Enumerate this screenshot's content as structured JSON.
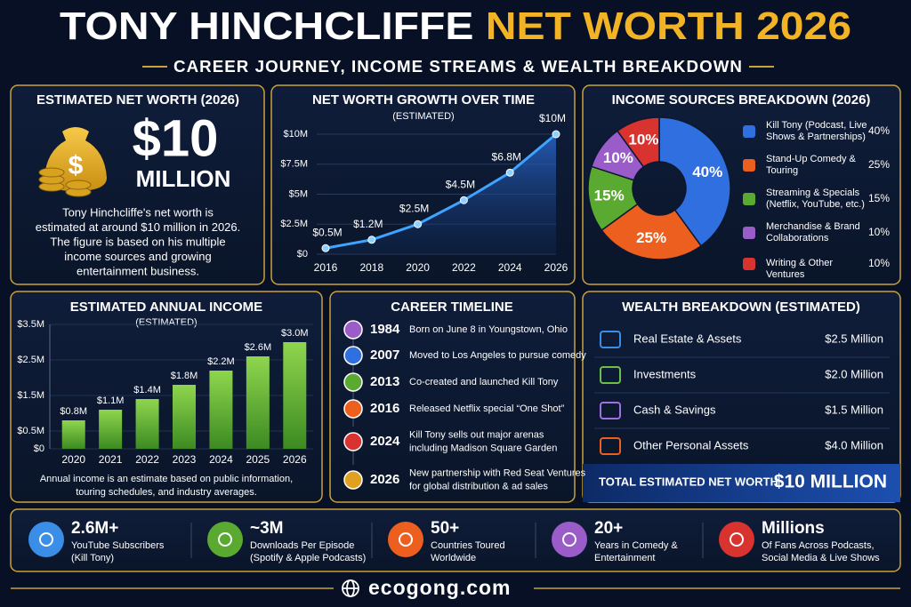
{
  "header": {
    "title_name": "TONY HINCHCLIFFE",
    "title_highlight": "NET WORTH 2026",
    "subtitle": "CAREER JOURNEY, INCOME STREAMS & WEALTH BREAKDOWN"
  },
  "net_worth": {
    "title": "ESTIMATED NET WORTH (2026)",
    "amount": "$10",
    "unit": "MILLION",
    "description": [
      "Tony Hinchcliffe's net worth is",
      "estimated at around $10 million in 2026.",
      "The figure is based on his multiple",
      "income sources and growing",
      "entertainment business."
    ]
  },
  "chart_data": [
    {
      "type": "line",
      "title": "NET WORTH GROWTH OVER TIME",
      "subtitle": "(ESTIMATED)",
      "x": [
        2016,
        2018,
        2020,
        2022,
        2024,
        2026
      ],
      "values": [
        0.5,
        1.2,
        2.5,
        4.5,
        6.8,
        10
      ],
      "value_labels": [
        "$0.5M",
        "$1.2M",
        "$2.5M",
        "$4.5M",
        "$6.8M",
        "$10M"
      ],
      "color": "#3fa4ff",
      "xlim": [
        2016,
        2026
      ],
      "xticks": [
        2016,
        2018,
        2020,
        2022,
        2024,
        2026
      ],
      "ylim": [
        0,
        10
      ],
      "yticks": [
        {
          "value": 0,
          "label": "$0"
        },
        {
          "value": 2.5,
          "label": "$2.5M"
        },
        {
          "value": 5,
          "label": "$5M"
        },
        {
          "value": 7.5,
          "label": "$7.5M"
        },
        {
          "value": 10,
          "label": "$10M"
        }
      ],
      "grid": true
    },
    {
      "type": "pie",
      "title": "INCOME SOURCES BREAKDOWN (2026)",
      "categories": [
        "Kill Tony (Podcast, Live Shows & Partnerships)",
        "Stand-Up Comedy & Touring",
        "Streaming & Specials (Netflix, YouTube, etc.)",
        "Merchandise & Brand Collaborations",
        "Writing & Other Ventures"
      ],
      "values": [
        40,
        25,
        15,
        10,
        10
      ],
      "value_labels": [
        "40%",
        "25%",
        "15%",
        "10%",
        "10%"
      ],
      "colors": [
        "#2f6fe0",
        "#ec5f1e",
        "#5aaa32",
        "#9a5cc8",
        "#d8332e"
      ]
    },
    {
      "type": "bar",
      "title": "ESTIMATED ANNUAL INCOME",
      "subtitle": "(ESTIMATED)",
      "categories": [
        "2020",
        "2021",
        "2022",
        "2023",
        "2024",
        "2025",
        "2026"
      ],
      "values": [
        0.8,
        1.1,
        1.4,
        1.8,
        2.2,
        2.6,
        3.0
      ],
      "value_labels": [
        "$0.8M",
        "$1.1M",
        "$1.4M",
        "$1.8M",
        "$2.2M",
        "$2.6M",
        "$3.0M"
      ],
      "color": "#6cc03a",
      "ylim": [
        0,
        3.5
      ],
      "yticks": [
        {
          "value": 0,
          "label": "$0"
        },
        {
          "value": 0.5,
          "label": "$0.5M"
        },
        {
          "value": 1.5,
          "label": "$1.5M"
        },
        {
          "value": 2.5,
          "label": "$2.5M"
        },
        {
          "value": 3.5,
          "label": "$3.5M"
        }
      ],
      "grid": true,
      "note": [
        "Annual income is an estimate based on public information,",
        "touring schedules, and industry averages."
      ]
    }
  ],
  "timeline": {
    "title": "CAREER TIMELINE",
    "events": [
      {
        "year": "1984",
        "text": [
          "Born on June 8 in Youngstown, Ohio"
        ]
      },
      {
        "year": "2007",
        "text": [
          "Moved to Los Angeles to pursue comedy"
        ]
      },
      {
        "year": "2013",
        "text": [
          "Co-created and launched Kill Tony"
        ]
      },
      {
        "year": "2016",
        "text": [
          "Released Netflix special “One Shot”"
        ]
      },
      {
        "year": "2024",
        "text": [
          "Kill Tony sells out major arenas",
          "including Madison Square Garden"
        ]
      },
      {
        "year": "2026",
        "text": [
          "New partnership with Red Seat Ventures",
          "for global distribution & ad sales"
        ]
      }
    ]
  },
  "wealth": {
    "title": "WEALTH BREAKDOWN (ESTIMATED)",
    "rows": [
      {
        "label": "Real Estate & Assets",
        "amount": "$2.5 Million"
      },
      {
        "label": "Investments",
        "amount": "$2.0 Million"
      },
      {
        "label": "Cash & Savings",
        "amount": "$1.5 Million"
      },
      {
        "label": "Other Personal Assets",
        "amount": "$4.0 Million"
      }
    ],
    "total_label": "TOTAL ESTIMATED NET WORTH",
    "total_value": "$10 MILLION"
  },
  "stats": [
    {
      "value": "2.6M+",
      "label": [
        "YouTube Subscribers",
        "(Kill Tony)"
      ]
    },
    {
      "value": "~3M",
      "label": [
        "Downloads Per Episode",
        "(Spotify & Apple Podcasts)"
      ]
    },
    {
      "value": "50+",
      "label": [
        "Countries Toured",
        "Worldwide"
      ]
    },
    {
      "value": "20+",
      "label": [
        "Years in Comedy &",
        "Entertainment"
      ]
    },
    {
      "value": "Millions",
      "label": [
        "Of Fans Across Podcasts,",
        "Social Media & Live Shows"
      ]
    }
  ],
  "footer": "ecogong.com"
}
